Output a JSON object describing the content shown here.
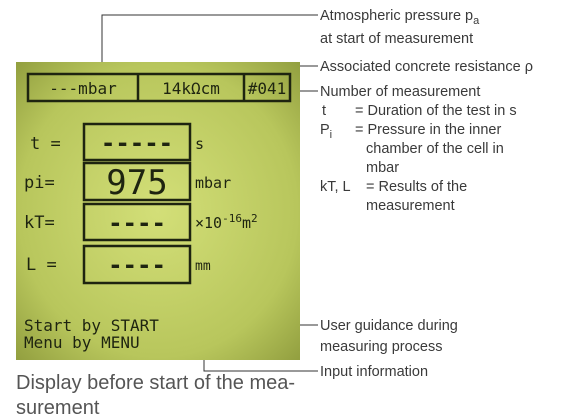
{
  "lcd": {
    "header": [
      "---mbar",
      "14kΩcm",
      "#041"
    ],
    "rows": [
      {
        "label": "t =",
        "value": "-----",
        "unit": "s"
      },
      {
        "label": "pi=",
        "value": "975",
        "unit": "mbar"
      },
      {
        "label": "kT=",
        "value": "----",
        "unit_base": "×10",
        "unit_exp": "-16",
        "unit_m": "m",
        "unit_m_exp": "2"
      },
      {
        "label": "L =",
        "value": "----",
        "unit": "mm"
      }
    ],
    "guidance": [
      "Start by START",
      "Menu by MENU"
    ]
  },
  "annotations": {
    "atmospheric": {
      "text": "Atmospheric pressure p",
      "sub": "a",
      "line2": "at start of measurement"
    },
    "resistance": "Associated concrete resistance ρ",
    "number": "Number of measurement",
    "t_sym": "t",
    "t_def": "= Duration of the test in s",
    "pi_sym": "P",
    "pi_sub": "i",
    "pi_def": [
      "= Pressure in the inner",
      "chamber of the cell in",
      "mbar"
    ],
    "kt_sym": "kT, L",
    "kt_def": [
      "= Results of the",
      "measurement"
    ],
    "guidance": [
      "User guidance during",
      "measuring process"
    ],
    "input": "Input information"
  },
  "caption": [
    "Display before start of the mea-",
    "surement"
  ]
}
